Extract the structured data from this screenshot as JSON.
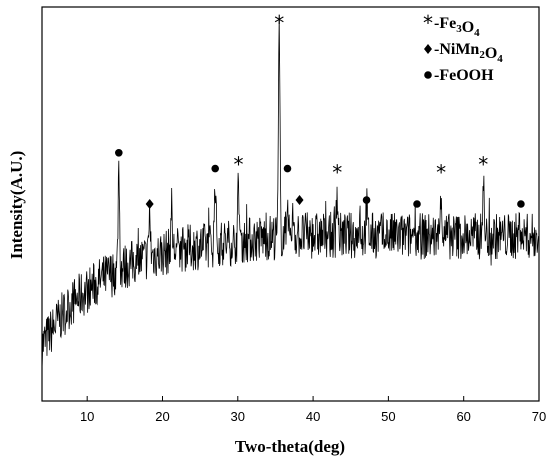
{
  "chart_data": {
    "type": "line",
    "xlabel": "Two-theta(deg)",
    "ylabel": "Intensity(A.U.)",
    "xlim": [
      4,
      70
    ],
    "ylim": [
      0,
      100
    ],
    "xticks": [
      10,
      20,
      30,
      40,
      50,
      60,
      70
    ],
    "y_tick_labels": false,
    "grid": false,
    "legend_position": "top-right",
    "legend": [
      {
        "marker": "star",
        "symbol": "*",
        "prefix": "-Fe",
        "sub1": "3",
        "mid": "O",
        "sub2": "4"
      },
      {
        "marker": "diamond",
        "symbol": "",
        "prefix": "-NiMn",
        "sub1": "2",
        "mid": "O",
        "sub2": "4"
      },
      {
        "marker": "circle",
        "symbol": "",
        "prefix": "-FeOOH",
        "sub1": "",
        "mid": "",
        "sub2": ""
      }
    ],
    "baseline": {
      "x": [
        4,
        6,
        8,
        10,
        12,
        14,
        16,
        18,
        20,
        22,
        24,
        26,
        28,
        30,
        32,
        34,
        36,
        38,
        40,
        42,
        44,
        46,
        48,
        50,
        52,
        54,
        56,
        58,
        60,
        62,
        64,
        66,
        68,
        70
      ],
      "y": [
        14,
        20,
        25,
        28,
        31,
        33,
        35,
        36.5,
        37.5,
        38.5,
        39,
        39.5,
        40,
        40.5,
        41,
        41.5,
        42,
        42,
        42,
        42,
        42,
        42,
        42,
        42,
        41.8,
        41.8,
        41.8,
        41.8,
        41.8,
        41.8,
        41.8,
        41.8,
        41.8,
        41.8
      ]
    },
    "noise_amplitude": 6,
    "peaks": [
      {
        "x": 14.2,
        "y": 60,
        "phase": "FeOOH"
      },
      {
        "x": 18.3,
        "y": 48,
        "phase": "NiMn2O4"
      },
      {
        "x": 21.2,
        "y": 49,
        "phase": ""
      },
      {
        "x": 27.0,
        "y": 57,
        "phase": "FeOOH"
      },
      {
        "x": 30.1,
        "y": 55,
        "phase": "Fe3O4"
      },
      {
        "x": 35.5,
        "y": 93,
        "phase": "Fe3O4"
      },
      {
        "x": 36.6,
        "y": 53,
        "phase": "FeOOH"
      },
      {
        "x": 37.4,
        "y": 48,
        "phase": "NiMn2O4"
      },
      {
        "x": 43.2,
        "y": 53,
        "phase": "Fe3O4"
      },
      {
        "x": 46.2,
        "y": 47,
        "phase": ""
      },
      {
        "x": 47.1,
        "y": 49,
        "phase": "FeOOH"
      },
      {
        "x": 53.5,
        "y": 47,
        "phase": "FeOOH"
      },
      {
        "x": 57.0,
        "y": 54,
        "phase": "Fe3O4"
      },
      {
        "x": 62.6,
        "y": 56,
        "phase": "Fe3O4"
      },
      {
        "x": 67.5,
        "y": 46,
        "phase": "FeOOH"
      }
    ],
    "annotations": [
      {
        "x": 14.2,
        "y": 63,
        "marker": "circle"
      },
      {
        "x": 18.3,
        "y": 50,
        "marker": "diamond"
      },
      {
        "x": 27.0,
        "y": 59,
        "marker": "circle"
      },
      {
        "x": 30.1,
        "y": 60,
        "marker": "star"
      },
      {
        "x": 35.5,
        "y": 96,
        "marker": "star"
      },
      {
        "x": 36.6,
        "y": 59,
        "marker": "circle"
      },
      {
        "x": 38.2,
        "y": 51,
        "marker": "diamond"
      },
      {
        "x": 43.2,
        "y": 58,
        "marker": "star"
      },
      {
        "x": 47.1,
        "y": 51,
        "marker": "circle"
      },
      {
        "x": 53.8,
        "y": 50,
        "marker": "circle"
      },
      {
        "x": 57.0,
        "y": 58,
        "marker": "star"
      },
      {
        "x": 62.6,
        "y": 60,
        "marker": "star"
      },
      {
        "x": 67.6,
        "y": 50,
        "marker": "circle"
      }
    ]
  }
}
